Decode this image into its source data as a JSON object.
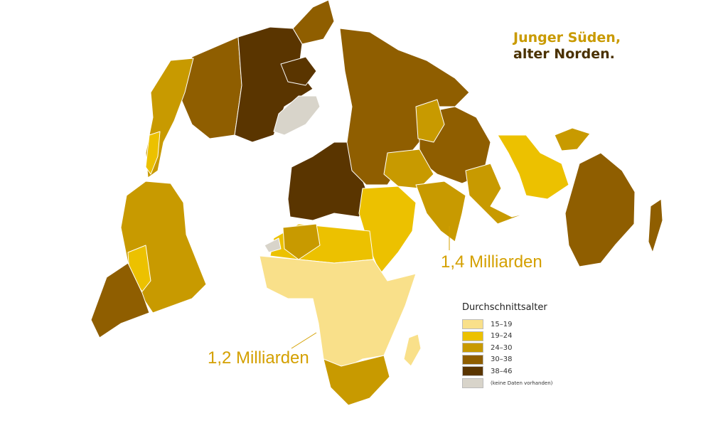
{
  "title": {
    "line1": "Junger Süden,",
    "line2": "alter Norden."
  },
  "annotations": {
    "asia": "1,4 Milliarden",
    "africa": "1,2 Milliarden"
  },
  "legend": {
    "title": "Durchschnittsalter",
    "items": [
      {
        "label": "15–19",
        "color": "#f9e08a"
      },
      {
        "label": "19–24",
        "color": "#ecc100"
      },
      {
        "label": "24–30",
        "color": "#c89a00"
      },
      {
        "label": "30–38",
        "color": "#8f5e00"
      },
      {
        "label": "38–46",
        "color": "#5a3500"
      },
      {
        "label": "(keine Daten vorhanden)",
        "color": "#d8d4ca"
      }
    ]
  }
}
